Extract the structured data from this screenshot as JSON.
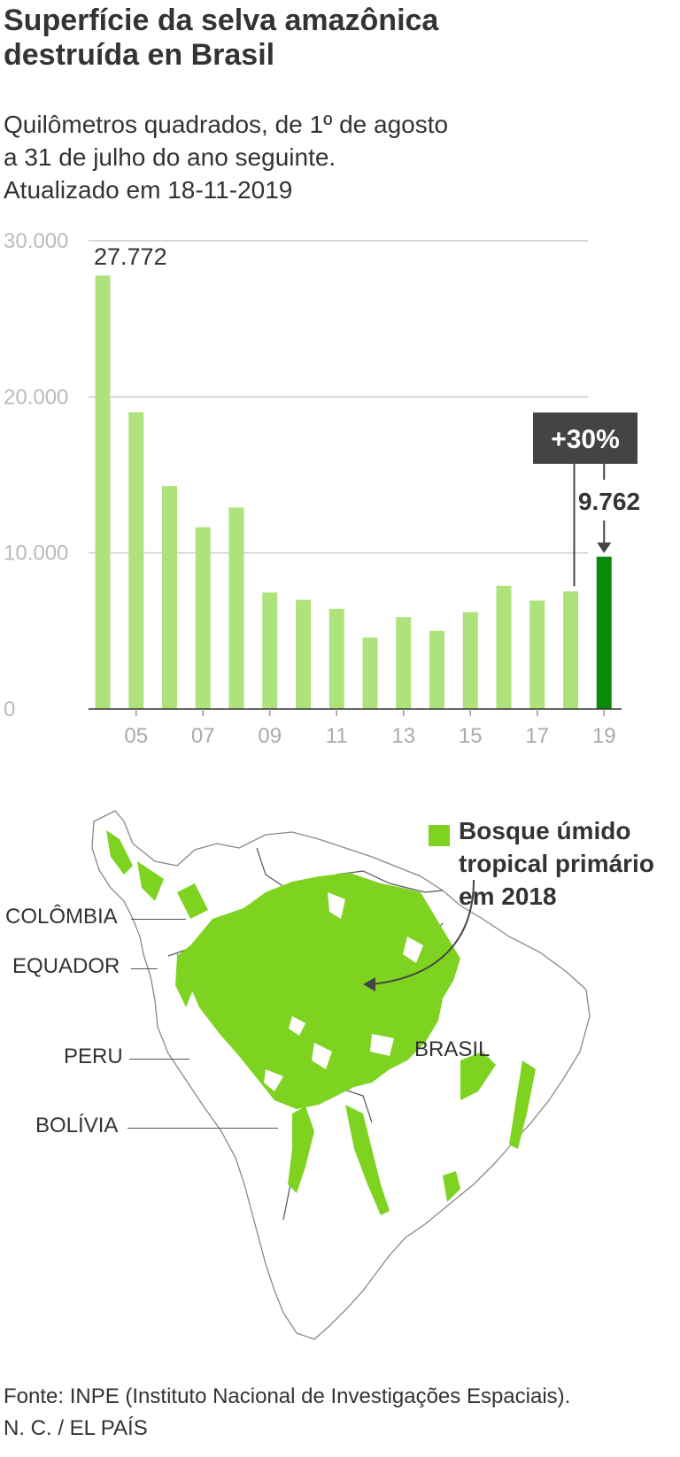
{
  "title": [
    "Superfície da selva amazônica",
    "destruída en Brasil"
  ],
  "subtitle": [
    "Quilômetros quadrados, de 1º de agosto",
    "a 31 de julho do ano seguinte.",
    "Atualizado em 18-11-2019"
  ],
  "chart_data": {
    "type": "bar",
    "x": [
      2004,
      2005,
      2006,
      2007,
      2008,
      2009,
      2010,
      2011,
      2012,
      2013,
      2014,
      2015,
      2016,
      2017,
      2018,
      2019
    ],
    "values": [
      27772,
      19014,
      14286,
      11651,
      12911,
      7464,
      7000,
      6418,
      4571,
      5891,
      5012,
      6207,
      7893,
      6947,
      7536,
      9762
    ],
    "ylim": [
      0,
      30000
    ],
    "yticks": [
      0,
      10000,
      20000,
      30000
    ],
    "ytick_labels": [
      "0",
      "10.000",
      "20.000",
      "30.000"
    ],
    "xtick_labels": [
      "05",
      "07",
      "09",
      "11",
      "13",
      "15",
      "17",
      "19"
    ],
    "xtick_years": [
      2005,
      2007,
      2009,
      2011,
      2013,
      2015,
      2017,
      2019
    ],
    "annotations": {
      "first_label": "27.772",
      "last_label": "9.762",
      "change_label": "+30%"
    },
    "colors": {
      "bar": "#aee27a",
      "highlight": "#0a8a0a",
      "grid": "#cccccc",
      "callout_bg": "#444444"
    }
  },
  "legend": {
    "label": "Bosque úmido tropical primário em 2018",
    "color": "#7ed321"
  },
  "map_labels": {
    "colombia": "COLÔMBIA",
    "ecuador": "EQUADOR",
    "peru": "PERU",
    "bolivia": "BOLÍVIA",
    "brasil": "BRASIL"
  },
  "footer": [
    "Fonte: INPE (Instituto Nacional de Investigações Espaciais).",
    "N. C. / EL PAÍS"
  ]
}
